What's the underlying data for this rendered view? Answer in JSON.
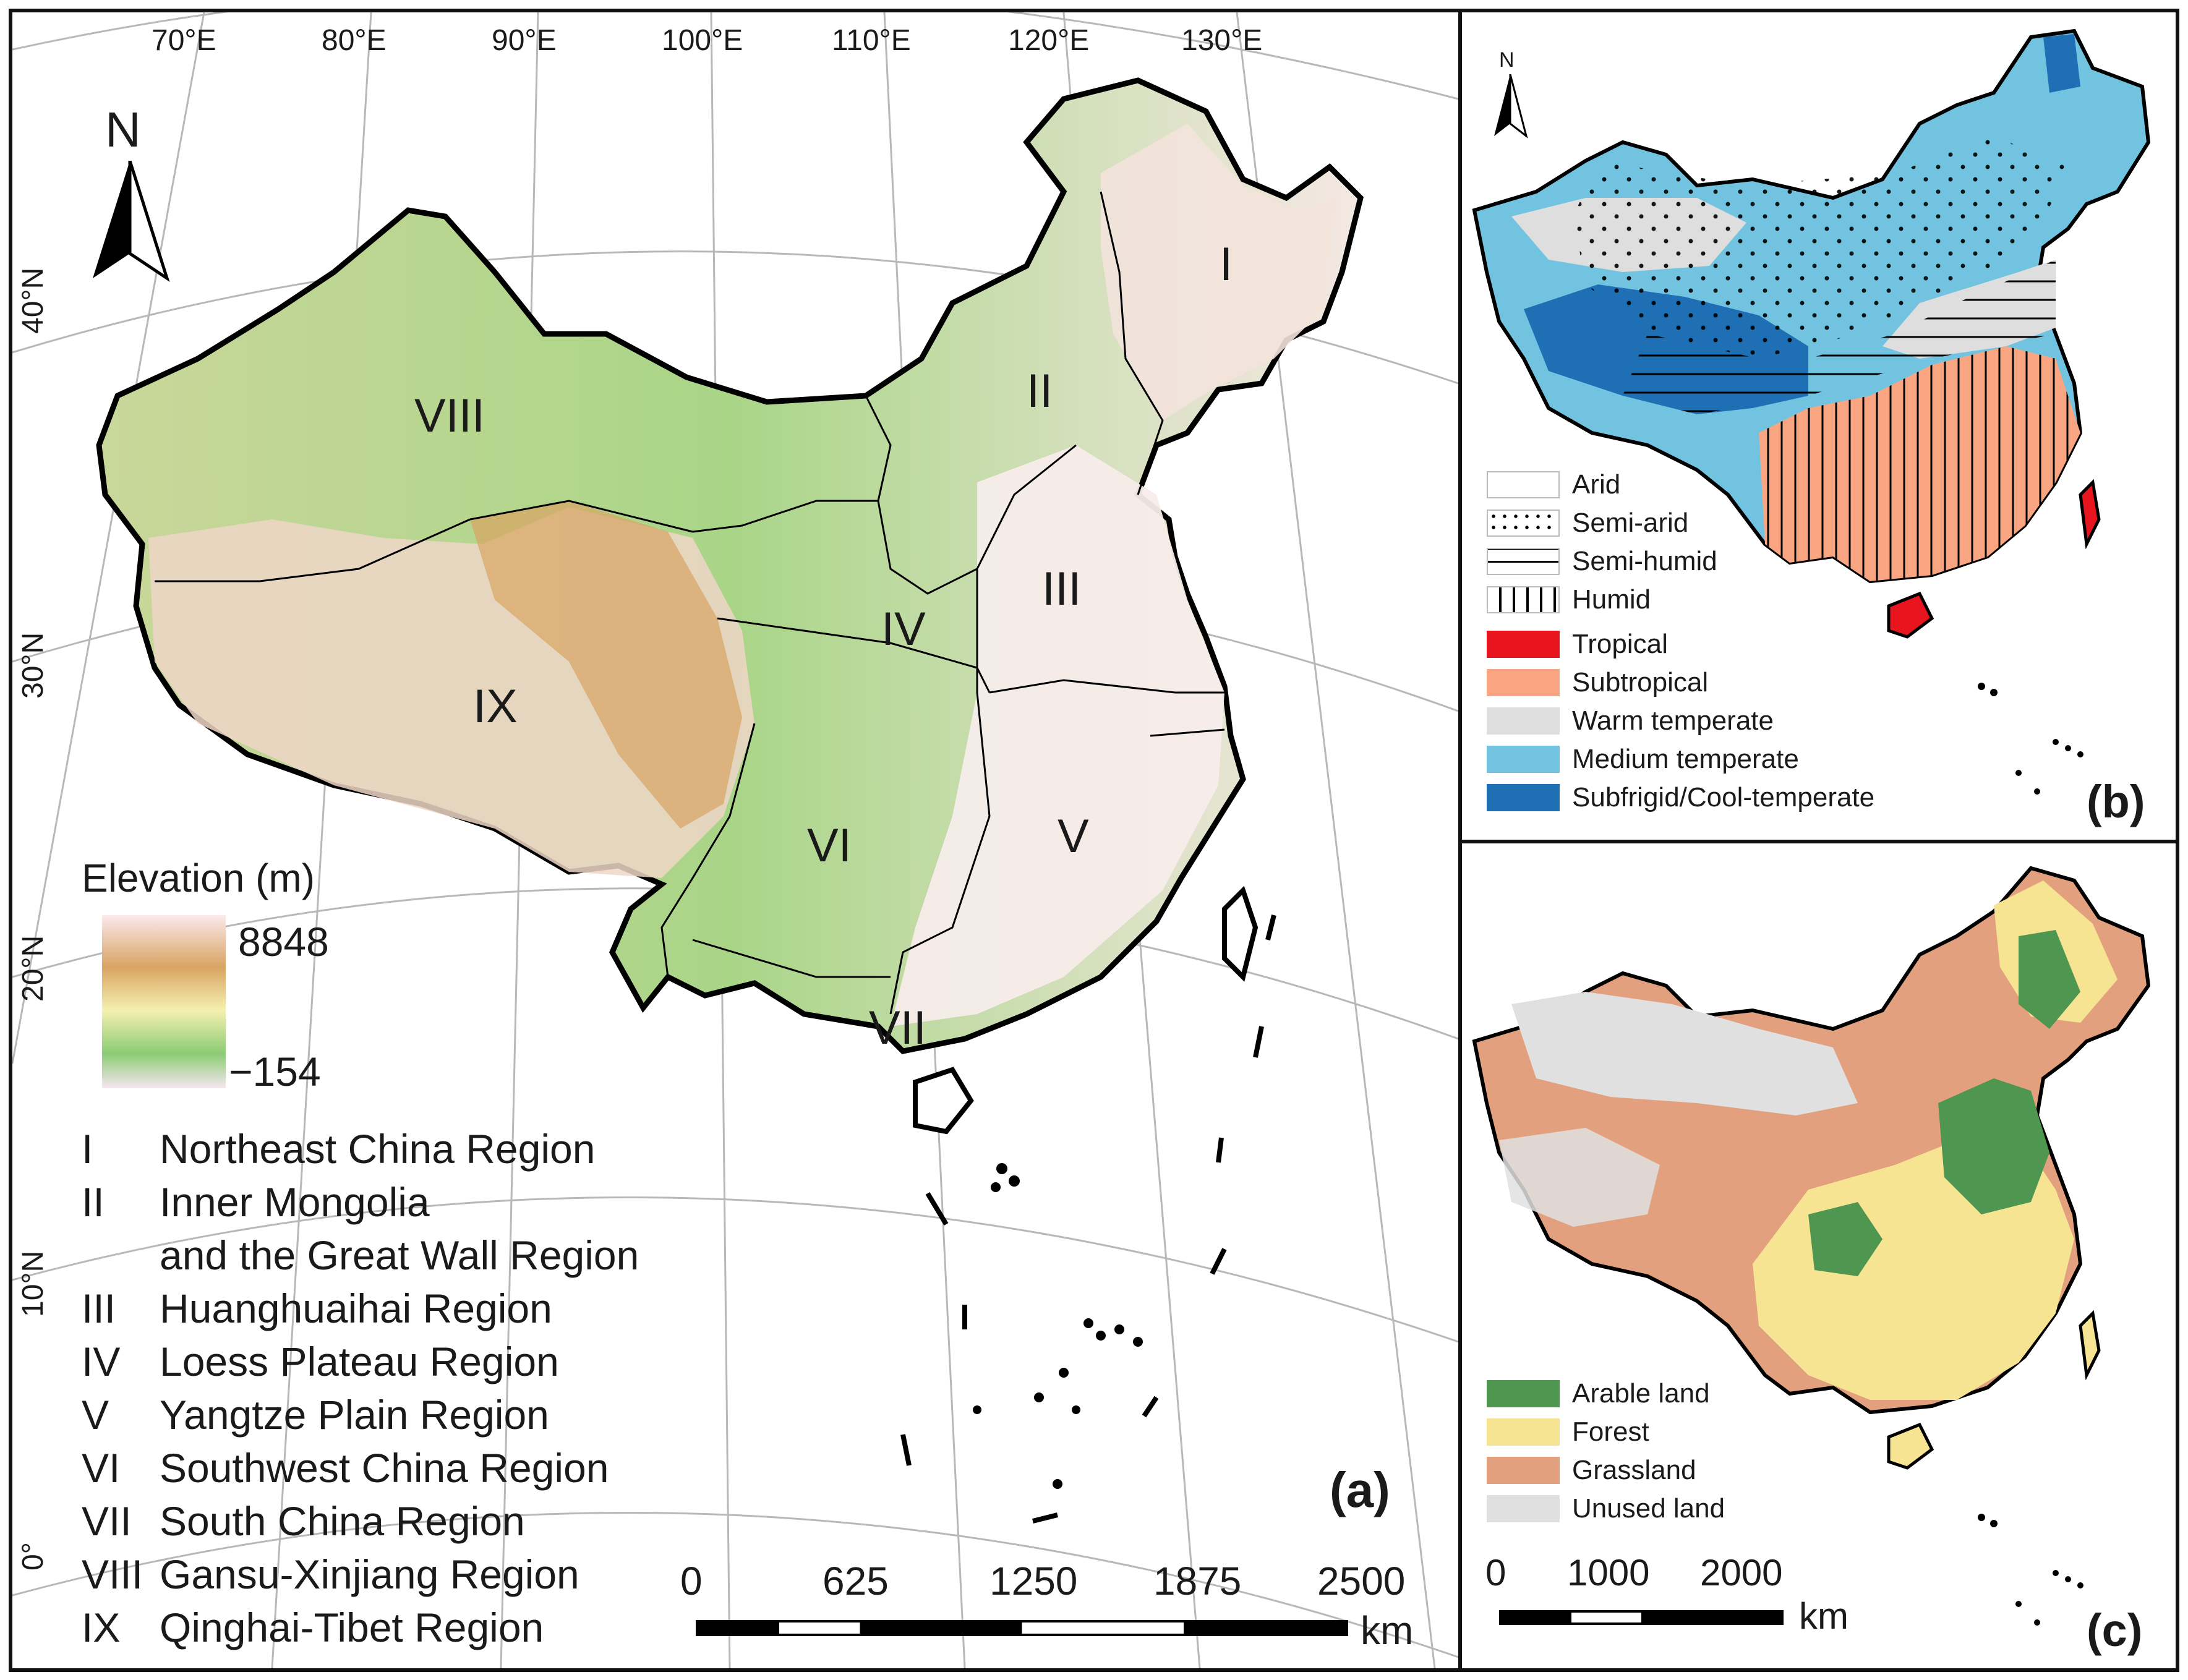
{
  "panel_a": {
    "label": "(a)",
    "north": "N",
    "lon_labels": [
      "70°E",
      "80°E",
      "90°E",
      "100°E",
      "110°E",
      "120°E",
      "130°E"
    ],
    "lat_labels": [
      "40°N",
      "30°N",
      "20°N",
      "10°N",
      "0°"
    ],
    "region_labels": [
      "I",
      "II",
      "III",
      "IV",
      "V",
      "VI",
      "VII",
      "VIII",
      "IX"
    ],
    "elevation": {
      "title": "Elevation (m)",
      "max": "8848",
      "min": "−154",
      "colors": [
        "#fbe9ec",
        "#d9a463",
        "#f5f0b0",
        "#8ccc74",
        "#f6e6ef"
      ]
    },
    "regions": [
      {
        "num": "I",
        "name": "Northeast China Region"
      },
      {
        "num": "II",
        "name": "Inner Mongolia"
      },
      {
        "num": "",
        "name": "and the Great Wall Region"
      },
      {
        "num": "III",
        "name": "Huanghuaihai Region"
      },
      {
        "num": "IV",
        "name": "Loess Plateau Region"
      },
      {
        "num": "V",
        "name": "Yangtze Plain Region"
      },
      {
        "num": "VI",
        "name": "Southwest China Region"
      },
      {
        "num": "VII",
        "name": "South China Region"
      },
      {
        "num": "VIII",
        "name": "Gansu-Xinjiang Region"
      },
      {
        "num": "IX",
        "name": "Qinghai-Tibet Region"
      }
    ],
    "scale": {
      "ticks": [
        "0",
        "625",
        "1250",
        "1875",
        "2500"
      ],
      "unit": "km"
    }
  },
  "panel_b": {
    "label": "(b)",
    "north": "N",
    "moisture": [
      "Arid",
      "Semi-arid",
      "Semi-humid",
      "Humid"
    ],
    "temperature": [
      {
        "name": "Tropical",
        "color": "#e8141e"
      },
      {
        "name": "Subtropical",
        "color": "#f9a582"
      },
      {
        "name": "Warm temperate",
        "color": "#dedede"
      },
      {
        "name": "Medium temperate",
        "color": "#72c3e0"
      },
      {
        "name": "Subfrigid/Cool-temperate",
        "color": "#1f6fb5"
      }
    ]
  },
  "panel_c": {
    "label": "(c)",
    "landuse": [
      {
        "name": "Arable land",
        "color": "#4f9650"
      },
      {
        "name": "Forest",
        "color": "#f6e493"
      },
      {
        "name": "Grassland",
        "color": "#e2a07e"
      },
      {
        "name": "Unused land",
        "color": "#e0e0e0"
      }
    ],
    "scale": {
      "ticks": [
        "0",
        "1000",
        "2000"
      ],
      "unit": "km"
    }
  }
}
